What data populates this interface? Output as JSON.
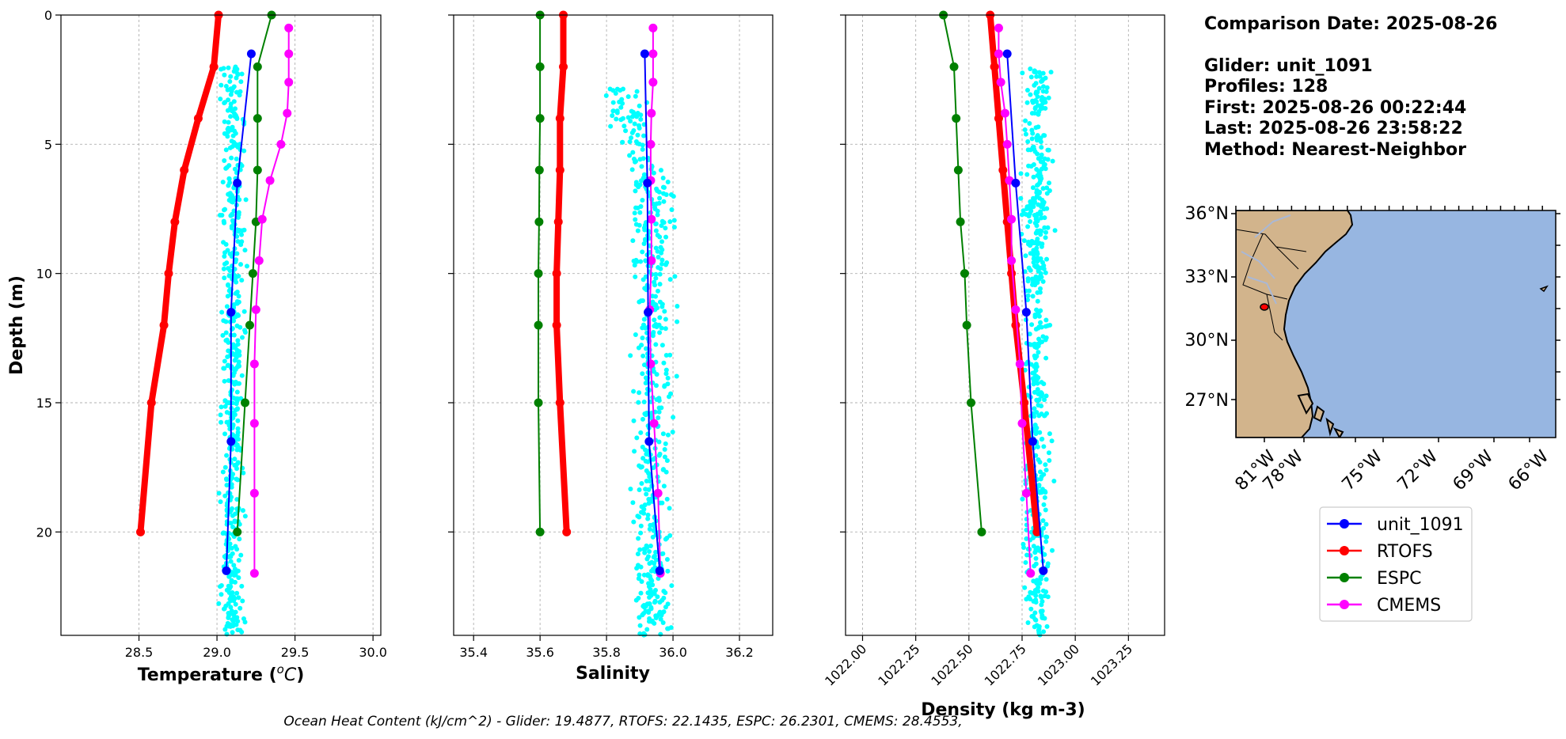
{
  "chart_data": [
    {
      "type": "line",
      "xlabel": "Temperature (°C)",
      "xlabel_main": "Temperature (",
      "xlabel_unit": "o",
      "xlabel_C": "C",
      "xlabel_close": ")",
      "ylabel": "Depth (m)",
      "xlim": [
        28.0,
        30.05
      ],
      "ylim": [
        24,
        0
      ],
      "xticks": [
        "28.5",
        "29.0",
        "29.5",
        "30.0"
      ],
      "yticks": [
        "0",
        "5",
        "10",
        "15",
        "20"
      ],
      "grid": true,
      "series": [
        {
          "name": "unit_1091",
          "color": "#0000ff",
          "linewidth": 2,
          "points": [
            [
              29.22,
              1.5
            ],
            [
              29.13,
              6.5
            ],
            [
              29.09,
              11.5
            ],
            [
              29.09,
              16.5
            ],
            [
              29.06,
              21.5
            ]
          ]
        },
        {
          "name": "RTOFS",
          "color": "#ff0000",
          "linewidth": 8,
          "points": [
            [
              29.01,
              0
            ],
            [
              28.98,
              2
            ],
            [
              28.88,
              4
            ],
            [
              28.79,
              6
            ],
            [
              28.73,
              8
            ],
            [
              28.69,
              10
            ],
            [
              28.66,
              12
            ],
            [
              28.58,
              15
            ],
            [
              28.51,
              20
            ]
          ]
        },
        {
          "name": "ESPC",
          "color": "#008000",
          "linewidth": 2,
          "points": [
            [
              29.35,
              0
            ],
            [
              29.26,
              2
            ],
            [
              29.26,
              4
            ],
            [
              29.26,
              6
            ],
            [
              29.25,
              8
            ],
            [
              29.23,
              10
            ],
            [
              29.21,
              12
            ],
            [
              29.18,
              15
            ],
            [
              29.13,
              20
            ]
          ]
        },
        {
          "name": "CMEMS",
          "color": "#ff00ff",
          "linewidth": 2,
          "points": [
            [
              29.46,
              0.5
            ],
            [
              29.46,
              1.5
            ],
            [
              29.46,
              2.6
            ],
            [
              29.45,
              3.8
            ],
            [
              29.41,
              5.0
            ],
            [
              29.34,
              6.4
            ],
            [
              29.29,
              7.9
            ],
            [
              29.27,
              9.5
            ],
            [
              29.25,
              11.4
            ],
            [
              29.24,
              13.5
            ],
            [
              29.24,
              15.8
            ],
            [
              29.24,
              18.5
            ],
            [
              29.24,
              21.6
            ]
          ]
        }
      ],
      "scatter": {
        "color": "#00ffff",
        "x_center": 29.1,
        "x_spread": 0.12,
        "y_range": [
          2.0,
          24
        ]
      }
    },
    {
      "type": "line",
      "xlabel": "Salinity",
      "xlim": [
        35.34,
        36.3
      ],
      "ylim": [
        24,
        0
      ],
      "xticks": [
        "35.4",
        "35.6",
        "35.8",
        "36.0",
        "36.2"
      ],
      "grid": true,
      "series": [
        {
          "name": "unit_1091",
          "color": "#0000ff",
          "linewidth": 2,
          "points": [
            [
              35.915,
              1.5
            ],
            [
              35.923,
              6.5
            ],
            [
              35.925,
              11.5
            ],
            [
              35.928,
              16.5
            ],
            [
              35.96,
              21.5
            ]
          ]
        },
        {
          "name": "RTOFS",
          "color": "#ff0000",
          "linewidth": 8,
          "points": [
            [
              35.67,
              0
            ],
            [
              35.67,
              2
            ],
            [
              35.66,
              4
            ],
            [
              35.66,
              6
            ],
            [
              35.655,
              8
            ],
            [
              35.65,
              10
            ],
            [
              35.65,
              12
            ],
            [
              35.66,
              15
            ],
            [
              35.68,
              20
            ]
          ]
        },
        {
          "name": "ESPC",
          "color": "#008000",
          "linewidth": 2,
          "points": [
            [
              35.6,
              0
            ],
            [
              35.6,
              2
            ],
            [
              35.6,
              4
            ],
            [
              35.598,
              6
            ],
            [
              35.597,
              8
            ],
            [
              35.595,
              10
            ],
            [
              35.595,
              12
            ],
            [
              35.595,
              15
            ],
            [
              35.6,
              20
            ]
          ]
        },
        {
          "name": "CMEMS",
          "color": "#ff00ff",
          "linewidth": 2,
          "points": [
            [
              35.94,
              0.5
            ],
            [
              35.94,
              1.5
            ],
            [
              35.94,
              2.6
            ],
            [
              35.935,
              3.8
            ],
            [
              35.933,
              5.0
            ],
            [
              35.933,
              6.4
            ],
            [
              35.935,
              7.9
            ],
            [
              35.935,
              9.5
            ],
            [
              35.93,
              11.4
            ],
            [
              35.933,
              13.5
            ],
            [
              35.943,
              15.8
            ],
            [
              35.955,
              18.5
            ],
            [
              35.962,
              21.6
            ]
          ]
        }
      ],
      "scatter": {
        "color": "#00ffff",
        "x_center": 35.94,
        "x_spread": 0.1,
        "y_range": [
          2.8,
          24
        ]
      }
    },
    {
      "type": "line",
      "xlabel": "Density (kg m-3)",
      "xlim": [
        1021.92,
        1023.42
      ],
      "ylim": [
        24,
        0
      ],
      "xticks": [
        "1022.00",
        "1022.25",
        "1022.50",
        "1022.75",
        "1023.00",
        "1023.25"
      ],
      "grid": true,
      "series": [
        {
          "name": "unit_1091",
          "color": "#0000ff",
          "linewidth": 2,
          "points": [
            [
              1022.68,
              1.5
            ],
            [
              1022.72,
              6.5
            ],
            [
              1022.77,
              11.5
            ],
            [
              1022.8,
              16.5
            ],
            [
              1022.85,
              21.5
            ]
          ]
        },
        {
          "name": "RTOFS",
          "color": "#ff0000",
          "linewidth": 8,
          "points": [
            [
              1022.6,
              0
            ],
            [
              1022.62,
              2
            ],
            [
              1022.64,
              4
            ],
            [
              1022.66,
              6
            ],
            [
              1022.68,
              8
            ],
            [
              1022.7,
              10
            ],
            [
              1022.72,
              12
            ],
            [
              1022.76,
              15
            ],
            [
              1022.82,
              20
            ]
          ]
        },
        {
          "name": "ESPC",
          "color": "#008000",
          "linewidth": 2,
          "points": [
            [
              1022.38,
              0
            ],
            [
              1022.43,
              2
            ],
            [
              1022.44,
              4
            ],
            [
              1022.45,
              6
            ],
            [
              1022.46,
              8
            ],
            [
              1022.48,
              10
            ],
            [
              1022.49,
              12
            ],
            [
              1022.51,
              15
            ],
            [
              1022.56,
              20
            ]
          ]
        },
        {
          "name": "CMEMS",
          "color": "#ff00ff",
          "linewidth": 2,
          "points": [
            [
              1022.64,
              0.5
            ],
            [
              1022.64,
              1.5
            ],
            [
              1022.65,
              2.6
            ],
            [
              1022.67,
              3.8
            ],
            [
              1022.68,
              5.0
            ],
            [
              1022.69,
              6.4
            ],
            [
              1022.7,
              7.9
            ],
            [
              1022.7,
              9.5
            ],
            [
              1022.72,
              11.4
            ],
            [
              1022.74,
              13.5
            ],
            [
              1022.75,
              15.8
            ],
            [
              1022.77,
              18.5
            ],
            [
              1022.79,
              21.6
            ]
          ]
        }
      ],
      "scatter": {
        "color": "#00ffff",
        "x_center": 1022.82,
        "x_spread": 0.1,
        "y_range": [
          2.0,
          24
        ]
      }
    }
  ],
  "info": {
    "comparison_date": "Comparison Date: 2025-08-26",
    "glider": "Glider: unit_1091",
    "profiles": "Profiles: 128",
    "first": "First: 2025-08-26 00:22:44",
    "last": "Last: 2025-08-26 23:58:22",
    "method": "Method: Nearest-Neighbor"
  },
  "map": {
    "lat_labels": [
      "36°N",
      "33°N",
      "30°N",
      "27°N"
    ],
    "lon_labels": [
      "81°W",
      "78°W",
      "75°W",
      "72°W",
      "69°W",
      "66°W"
    ],
    "ocean_color": "#97b6e1",
    "land_color": "#d2b48c",
    "marker_color": "#ff0000"
  },
  "legend": [
    {
      "name": "unit_1091",
      "color": "#0000ff"
    },
    {
      "name": "RTOFS",
      "color": "#ff0000"
    },
    {
      "name": "ESPC",
      "color": "#008000"
    },
    {
      "name": "CMEMS",
      "color": "#ff00ff"
    }
  ],
  "footer": "Ocean Heat Content (kJ/cm^2) - Glider: 19.4877,  RTOFS: 22.1435,  ESPC: 26.2301,  CMEMS: 28.4553,"
}
